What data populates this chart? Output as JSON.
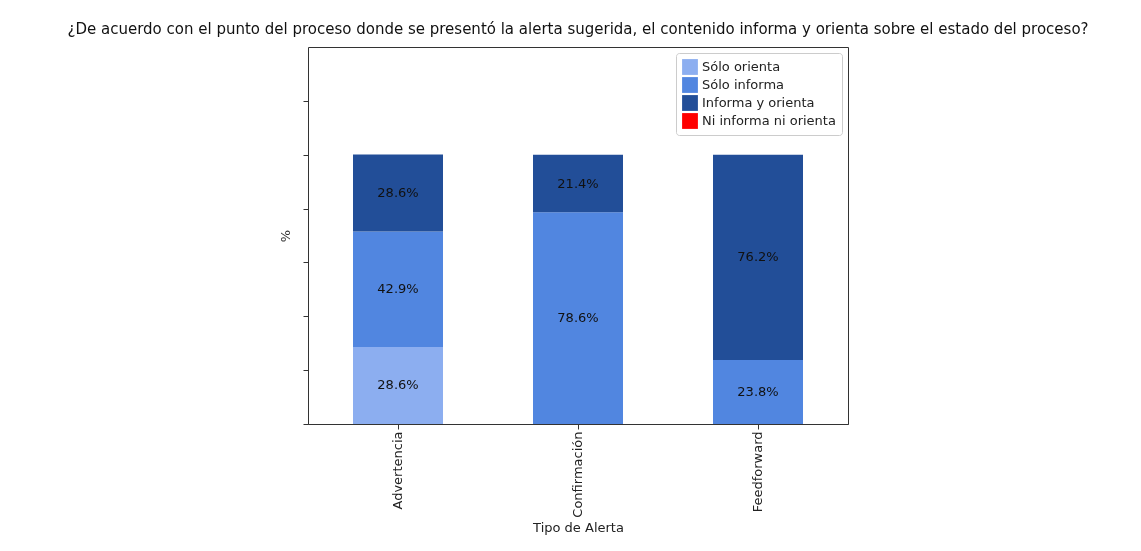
{
  "chart_data": {
    "type": "bar",
    "title": "¿De acuerdo con el punto del proceso donde se presentó la alerta sugerida, el contenido informa y orienta sobre el estado del proceso?",
    "xlabel": "Tipo de Alerta",
    "ylabel": "%",
    "categories": [
      "Advertencia",
      "Confirmación",
      "Feedforward"
    ],
    "stacked": true,
    "legend": "top right",
    "tick_labels": "x",
    "ylim": [
      0,
      140
    ],
    "yticks": [
      {
        "value": 0,
        "label": null
      },
      {
        "value": 20,
        "label": null
      },
      {
        "value": 40,
        "label": null
      },
      {
        "value": 60,
        "label": null
      },
      {
        "value": 80,
        "label": null
      },
      {
        "value": 100,
        "label": null
      },
      {
        "value": 120,
        "label": null
      }
    ],
    "series": [
      {
        "name": "Sólo orienta",
        "color": "#8caef0",
        "values": [
          28.6,
          0,
          0
        ],
        "value_labels": [
          "28.6%",
          null,
          null
        ]
      },
      {
        "name": "Sólo informa",
        "color": "#5186e0",
        "values": [
          42.9,
          78.6,
          23.8
        ],
        "value_labels": [
          "42.9%",
          "78.6%",
          "23.8%"
        ]
      },
      {
        "name": "Informa y orienta",
        "color": "#224e98",
        "values": [
          28.6,
          21.4,
          76.2
        ],
        "value_labels": [
          "28.6%",
          "21.4%",
          "76.2%"
        ]
      },
      {
        "name": "Ni informa ni orienta",
        "color": "#ff0000",
        "values": [
          0,
          0,
          0
        ],
        "value_labels": [
          null,
          null,
          null
        ]
      }
    ]
  }
}
